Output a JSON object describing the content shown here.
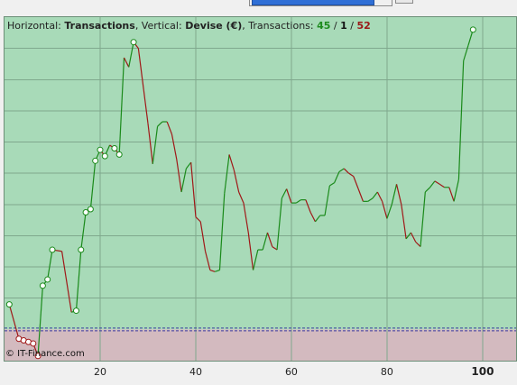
{
  "header": {
    "horizontal_label": "Horizontal:",
    "horizontal_value": "Transactions",
    "vertical_label": ", Vertical:",
    "vertical_value": "Devise (€)",
    "transactions_label": ", Transactions:",
    "count_positive": "45",
    "count_neutral": "1",
    "count_negative": "52",
    "sep": " / "
  },
  "copyright": "© IT-Finance.com",
  "colors": {
    "positive_area": "#a8dab8",
    "negative_area": "#d3babf",
    "up_line": "#1a8a1a",
    "down_line": "#a01818",
    "baseline_dash": "#3a3aa0",
    "grid": "#7fa88d"
  },
  "chart_data": {
    "type": "line",
    "title": "",
    "xlabel": "Transactions",
    "ylabel": "Devise (€)",
    "xlim": [
      0,
      107
    ],
    "ylim": [
      -100,
      1000
    ],
    "baseline": 0,
    "x_ticks": [
      20,
      40,
      60,
      80,
      100
    ],
    "x_tick_labels": [
      "20",
      "40",
      "60",
      "80",
      "100"
    ],
    "grid": true,
    "series": [
      {
        "name": "",
        "x": [
          1,
          3,
          4,
          5,
          6,
          7,
          8,
          9,
          10,
          12,
          14,
          15,
          16,
          17,
          18,
          19,
          20,
          21,
          22,
          23,
          24,
          25,
          26,
          27,
          28,
          30,
          31,
          32,
          33,
          34,
          35,
          36,
          37,
          38,
          39,
          40,
          41,
          42,
          43,
          44,
          45,
          46,
          47,
          48,
          49,
          50,
          51,
          52,
          53,
          54,
          55,
          56,
          57,
          58,
          59,
          60,
          61,
          62,
          63,
          64,
          65,
          66,
          67,
          68,
          69,
          70,
          71,
          72,
          73,
          74,
          75,
          76,
          77,
          78,
          79,
          80,
          81,
          82,
          83,
          84,
          85,
          86,
          87,
          88,
          89,
          90,
          91,
          92,
          93,
          94,
          95,
          96,
          97,
          98
        ],
        "y": [
          80,
          -30,
          -35,
          -40,
          -45,
          -85,
          140,
          160,
          255,
          250,
          55,
          60,
          255,
          375,
          385,
          540,
          575,
          555,
          590,
          580,
          560,
          870,
          840,
          920,
          900,
          660,
          530,
          650,
          665,
          665,
          625,
          545,
          440,
          515,
          535,
          360,
          345,
          250,
          190,
          185,
          190,
          435,
          560,
          510,
          440,
          405,
          310,
          190,
          255,
          255,
          310,
          265,
          255,
          420,
          450,
          405,
          405,
          415,
          415,
          375,
          345,
          365,
          365,
          460,
          470,
          505,
          515,
          500,
          490,
          450,
          410,
          410,
          420,
          440,
          410,
          355,
          400,
          465,
          400,
          290,
          310,
          280,
          265,
          440,
          455,
          475,
          465,
          455,
          455,
          410,
          480,
          860,
          910,
          960
        ]
      }
    ],
    "markers_x": [
      1,
      3,
      4,
      5,
      6,
      7,
      8,
      9,
      10,
      15,
      16,
      17,
      18,
      19,
      20,
      21,
      23,
      24,
      27,
      98
    ]
  }
}
